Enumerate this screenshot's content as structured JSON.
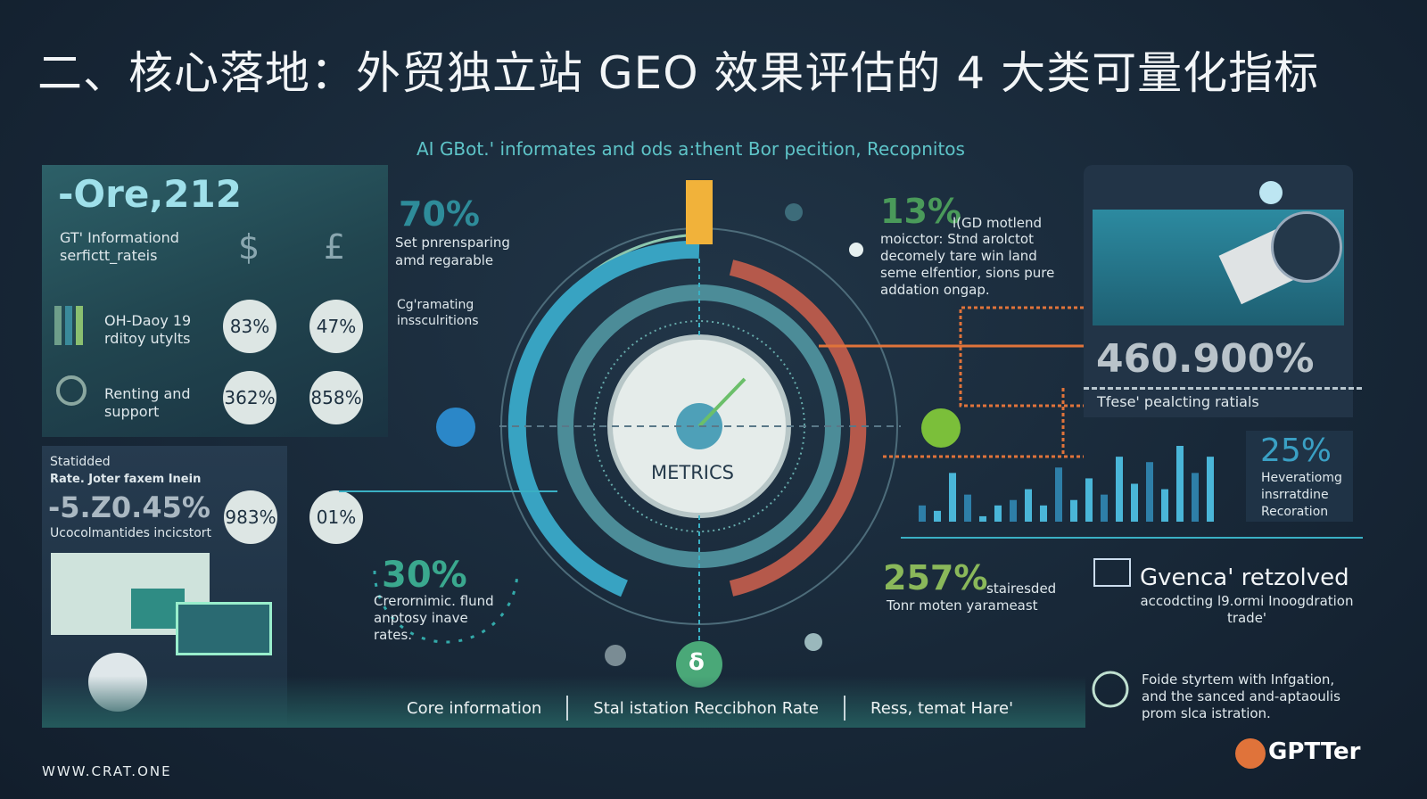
{
  "title": "二、核心落地：外贸独立站 GEO 效果评估的 4 大类可量化指标",
  "subtitle": "AI GBot.' informates and ods a:thent Bor pecition, Recopnitos",
  "left_panel": {
    "headline": "-Ore,212",
    "label": "GT' Informationd serfictt_rateis",
    "currency_icons": [
      "dollar-icon",
      "pound-icon"
    ],
    "rows": [
      {
        "icon": "bar-chart-icon",
        "label": "OH-Daoy 19 rditoy utylts",
        "values": [
          "83%",
          "47%"
        ]
      },
      {
        "icon": "search-icon",
        "label": "Renting and support",
        "values": [
          "362%",
          "858%"
        ]
      }
    ]
  },
  "bottom_left_panel": {
    "label1": "Statidded",
    "label2": "Rate. Joter faxem Inein",
    "value": "-5.Z0.45%",
    "caption": "Ucocolmantides incicstort",
    "values": [
      "983%",
      "01%"
    ]
  },
  "callouts": {
    "c70": {
      "value": "70%",
      "text": "Set pnrensparing amd regarable"
    },
    "cgen": {
      "text": "Cg'ramating inssculritions"
    },
    "c13": {
      "value": "13%",
      "title": "l(GD motlend",
      "text": "moicctor: Stnd arolctot decomely tare win land seme elfentior, sions pure addation ongap."
    },
    "c30": {
      "value": "30%",
      "text": "Crerornimic. flund anptosy inave rates."
    },
    "c257": {
      "value": "257%",
      "title": "stairesded",
      "text": "Tonr moten yarameast"
    }
  },
  "center": {
    "label": "METRICS",
    "bottom_icon_glyph": "δ"
  },
  "right_panel": {
    "value": "460.900%",
    "caption": "Tfese' pealcting ratials"
  },
  "box25": {
    "value": "25%",
    "text": "Heveratiomg insrratdine Recoration"
  },
  "bar_chart": {
    "values": [
      3,
      2,
      9,
      5,
      1,
      3,
      4,
      6,
      3,
      10,
      4,
      8,
      5,
      12,
      7,
      11,
      6,
      14,
      9,
      12
    ]
  },
  "bottom_band": [
    "Core information",
    "Stal istation Reccibhon Rate",
    "Ress, temat Hare'"
  ],
  "right_bottom": {
    "title": "Gvenca' retzolved",
    "subtitle": "accodcting l9.ormi Inoogdration trade'",
    "footer_text": "Foide styrtem with Infgation, and the sanced and-aptaoulis prom slca istration."
  },
  "footer": {
    "website": "WWW.CRAT.ONE",
    "brand": "GPTTer"
  },
  "colors": {
    "accent_teal": "#3ab0c4",
    "accent_orange": "#e0733a",
    "accent_green": "#6bbf6a",
    "arc_red": "#b5594b"
  }
}
